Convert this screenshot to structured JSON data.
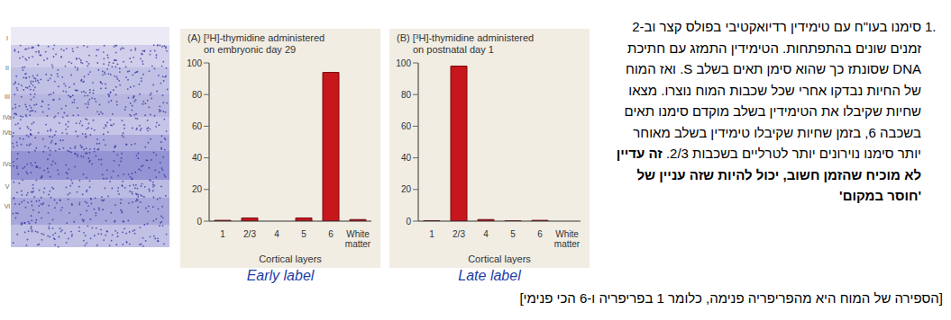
{
  "panel_image": {
    "layers": [
      "I",
      "II",
      "III",
      "IVa",
      "IVb",
      "IVc",
      "V",
      "VI"
    ]
  },
  "chart_data": [
    {
      "type": "bar",
      "title": [
        "(A) [³H]-thymidine administered",
        "on embryonic day 29"
      ],
      "categories": [
        "1",
        "2/3",
        "4",
        "5",
        "6",
        "White matter"
      ],
      "values": [
        0.5,
        2,
        0,
        2,
        94,
        1
      ],
      "color": "#c8161d",
      "ylim": [
        0,
        100
      ],
      "yticks": [
        0,
        20,
        40,
        60,
        80,
        100
      ],
      "x_label": "Cortical layers",
      "caption": "Early label"
    },
    {
      "type": "bar",
      "title": [
        "(B) [³H]-thymidine administered",
        "on postnatal day 1"
      ],
      "categories": [
        "1",
        "2/3",
        "4",
        "5",
        "6",
        "White matter"
      ],
      "values": [
        0.3,
        98,
        1,
        0.2,
        0.5,
        0
      ],
      "color": "#c8161d",
      "ylim": [
        0,
        100
      ],
      "yticks": [
        0,
        20,
        40,
        60,
        80,
        100
      ],
      "x_label": "Cortical layers",
      "caption": "Late label"
    }
  ],
  "text": {
    "number": "1.",
    "body": "סימנו בעו\"ח עם טימידין רדיואקטיבי בפולס קצר וב-2 זמנים שונים בהתפתחות. הטימידין התמזג עם חתיכת DNA שסונתז כך שהוא סימן תאים בשלב S. ואז המוח של החיות נבדקו אחרי שכל שכבות המוח נוצרו. מצאו שחיות שקיבלו את הטימידין בשלב מוקדם סימנו תאים בשכבה 6, בזמן שחיות שקיבלו טימידין בשלב מאוחר יותר סימנו נוירונים יותר לטרליים בשכבות 2/3.",
    "bold": "זה עדיין לא מוכיח שהזמן חשוב, יכול להיות שזה עניין של 'חוסר במקום'",
    "note": "[הספירה של המוח היא מהפריפריה פנימה, כלומר 1 בפריפריה ו-6 הכי פנימי]"
  }
}
